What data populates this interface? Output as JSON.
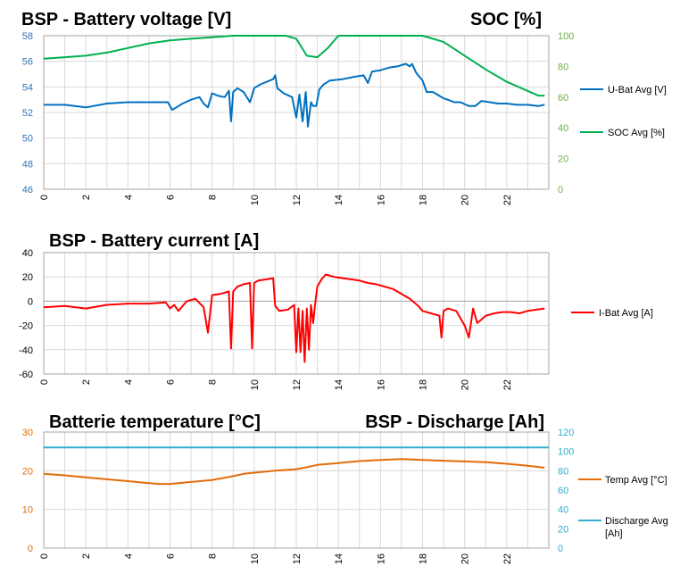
{
  "colors": {
    "voltage": "#0070C0",
    "soc": "#00B050",
    "current": "#FF0000",
    "temp": "#E36C09",
    "discharge": "#31AECD",
    "left_axis_voltage": "#2E74B5",
    "right_axis_soc": "#70AD47",
    "temp_axis": "#E36C09",
    "discharge_axis": "#31AECD",
    "grid": "#D9D9D9"
  },
  "chart_data": [
    {
      "type": "line",
      "title": "BSP - Battery voltage [V]",
      "title_right": "SOC [%]",
      "x_ticks": [
        "0",
        "2",
        "4",
        "6",
        "8",
        "10",
        "12",
        "14",
        "16",
        "18",
        "20",
        "22"
      ],
      "xlim": [
        0,
        24
      ],
      "ylim": [
        46,
        58
      ],
      "y_ticks": [
        "46",
        "48",
        "50",
        "52",
        "54",
        "56",
        "58"
      ],
      "y2lim": [
        0,
        100
      ],
      "y2_ticks": [
        "0",
        "20",
        "40",
        "60",
        "80",
        "100"
      ],
      "legend_position": "right",
      "grid": true,
      "series": [
        {
          "name": "U-Bat Avg [V]",
          "axis": "left",
          "x": [
            0,
            1,
            2,
            3,
            4,
            5,
            5.9,
            6.1,
            6.3,
            6.6,
            7,
            7.4,
            7.6,
            7.8,
            8,
            8.3,
            8.6,
            8.8,
            8.9,
            9.0,
            9.2,
            9.5,
            9.8,
            10,
            10.3,
            10.6,
            10.9,
            11.0,
            11.1,
            11.4,
            11.8,
            12.0,
            12.15,
            12.3,
            12.45,
            12.55,
            12.7,
            12.8,
            12.95,
            13.1,
            13.3,
            13.6,
            14.2,
            14.8,
            15.2,
            15.4,
            15.6,
            16,
            16.4,
            16.8,
            17,
            17.2,
            17.4,
            17.5,
            17.7,
            18.0,
            18.2,
            18.5,
            18.8,
            19.0,
            19.2,
            19.5,
            19.8,
            20.2,
            20.5,
            20.8,
            21.2,
            21.6,
            22,
            22.5,
            23,
            23.5,
            23.8
          ],
          "values": [
            52.6,
            52.6,
            52.4,
            52.7,
            52.8,
            52.8,
            52.8,
            52.2,
            52.4,
            52.7,
            53.0,
            53.2,
            52.7,
            52.4,
            53.5,
            53.3,
            53.2,
            53.7,
            51.3,
            53.6,
            53.9,
            53.6,
            52.8,
            53.9,
            54.2,
            54.4,
            54.6,
            54.9,
            53.9,
            53.5,
            53.2,
            51.6,
            53.4,
            51.3,
            53.6,
            50.9,
            52.8,
            52.5,
            52.5,
            53.8,
            54.2,
            54.5,
            54.6,
            54.8,
            54.9,
            54.3,
            55.2,
            55.3,
            55.5,
            55.6,
            55.7,
            55.8,
            55.6,
            55.8,
            55.1,
            54.5,
            53.6,
            53.6,
            53.3,
            53.1,
            53.0,
            52.8,
            52.8,
            52.5,
            52.5,
            52.9,
            52.8,
            52.7,
            52.7,
            52.6,
            52.6,
            52.5,
            52.6
          ]
        },
        {
          "name": "SOC Avg [%]",
          "axis": "right",
          "x": [
            0,
            1,
            2,
            3,
            4,
            5,
            6,
            7,
            8,
            9,
            10,
            11,
            11.5,
            12,
            12.5,
            13,
            13.5,
            14,
            15,
            16,
            17,
            18,
            19,
            20,
            21,
            22,
            23,
            23.5,
            23.8
          ],
          "values": [
            85,
            86,
            87,
            89,
            92,
            95,
            97,
            98,
            99,
            100,
            100,
            100,
            100,
            98,
            87,
            86,
            92,
            100,
            100,
            100,
            100,
            100,
            96,
            87,
            78,
            70,
            64,
            61,
            61
          ]
        }
      ]
    },
    {
      "type": "line",
      "title": "BSP - Battery current [A]",
      "x_ticks": [
        "0",
        "2",
        "4",
        "6",
        "8",
        "10",
        "12",
        "14",
        "16",
        "18",
        "20",
        "22"
      ],
      "xlim": [
        0,
        24
      ],
      "ylim": [
        -60,
        40
      ],
      "y_ticks": [
        "-60",
        "-40",
        "-20",
        "0",
        "20",
        "40"
      ],
      "legend_position": "right",
      "grid": true,
      "series": [
        {
          "name": "I-Bat Avg [A]",
          "x": [
            0,
            1,
            2,
            3,
            4,
            5,
            5.8,
            6.0,
            6.2,
            6.4,
            6.8,
            7.2,
            7.6,
            7.8,
            8.0,
            8.4,
            8.8,
            8.9,
            9.0,
            9.2,
            9.5,
            9.8,
            9.9,
            10.0,
            10.2,
            10.6,
            10.9,
            11.0,
            11.2,
            11.6,
            11.9,
            12.0,
            12.1,
            12.2,
            12.3,
            12.4,
            12.5,
            12.6,
            12.7,
            12.8,
            12.9,
            13.0,
            13.2,
            13.4,
            13.8,
            14.2,
            14.6,
            15,
            15.4,
            15.8,
            16.2,
            16.6,
            17,
            17.4,
            17.8,
            18.0,
            18.4,
            18.8,
            18.9,
            19.0,
            19.2,
            19.6,
            20.0,
            20.2,
            20.4,
            20.6,
            21,
            21.4,
            21.8,
            22.2,
            22.6,
            23.0,
            23.4,
            23.8
          ],
          "values": [
            -5,
            -4,
            -6,
            -3,
            -2,
            -2,
            -1,
            -6,
            -3,
            -8,
            0,
            2,
            -5,
            -26,
            5,
            6,
            8,
            -39,
            8,
            12,
            14,
            15,
            -39,
            15,
            17,
            18,
            19,
            -4,
            -8,
            -7,
            -3,
            -42,
            -6,
            -42,
            -8,
            -50,
            -6,
            -40,
            -3,
            -18,
            -2,
            12,
            18,
            22,
            20,
            19,
            18,
            17,
            15,
            14,
            12,
            10,
            6,
            2,
            -4,
            -8,
            -10,
            -12,
            -30,
            -8,
            -6,
            -8,
            -20,
            -30,
            -6,
            -18,
            -12,
            -10,
            -9,
            -9,
            -10,
            -8,
            -7,
            -6
          ]
        }
      ]
    },
    {
      "type": "line",
      "title": "Batterie temperature [°C]",
      "title_right": "BSP - Discharge [Ah]",
      "x_ticks": [
        "0",
        "2",
        "4",
        "6",
        "8",
        "10",
        "12",
        "14",
        "16",
        "18",
        "20",
        "22"
      ],
      "xlim": [
        0,
        24
      ],
      "ylim": [
        0,
        30
      ],
      "y_ticks": [
        "0",
        "10",
        "20",
        "30"
      ],
      "y2lim": [
        0,
        120
      ],
      "y2_ticks": [
        "0",
        "20",
        "40",
        "60",
        "80",
        "100",
        "120"
      ],
      "legend_position": "right",
      "grid": true,
      "series": [
        {
          "name": "Temp Avg [°C]",
          "axis": "left",
          "x": [
            0,
            1,
            2,
            3,
            4,
            5,
            5.5,
            6,
            7,
            8,
            9,
            9.5,
            10,
            11,
            12,
            12.5,
            13,
            14,
            15,
            16,
            17,
            18,
            19,
            20,
            21,
            22,
            23,
            23.8
          ],
          "values": [
            19.2,
            18.8,
            18.3,
            17.8,
            17.3,
            16.8,
            16.6,
            16.6,
            17.1,
            17.6,
            18.6,
            19.2,
            19.5,
            20.0,
            20.4,
            20.9,
            21.5,
            22.0,
            22.5,
            22.8,
            23.0,
            22.8,
            22.6,
            22.4,
            22.2,
            21.8,
            21.3,
            20.8
          ]
        },
        {
          "name": "Discharge Avg [Ah]",
          "axis": "right",
          "x": [
            0,
            24
          ],
          "values": [
            104,
            104
          ]
        }
      ]
    }
  ]
}
